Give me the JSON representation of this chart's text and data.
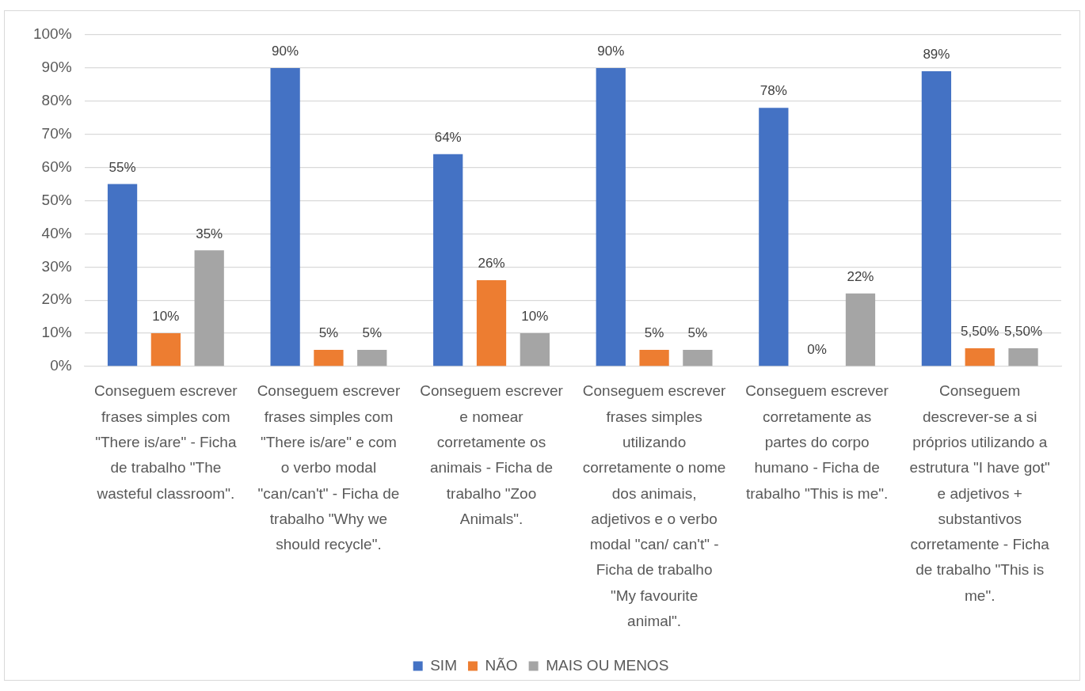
{
  "chart_data": {
    "type": "bar",
    "categories": [
      "Conseguem escrever frases simples com \"There is/are\" - Ficha de trabalho \"The wasteful classroom\".",
      "Conseguem escrever frases simples com \"There is/are\" e com o verbo modal \"can/can't\" - Ficha de trabalho \"Why we should recycle\".",
      "Conseguem escrever e nomear corretamente os animais - Ficha de trabalho \"Zoo Animals\".",
      "Conseguem escrever frases simples utilizando corretamente o nome dos animais, adjetivos e o verbo modal \"can/ can't\" - Ficha de trabalho \"My favourite animal\".",
      "Conseguem escrever corretamente as partes do corpo humano - Ficha de trabalho \"This is me\".",
      "Conseguem descrever-se a si próprios utilizando a estrutura \"I have got\" e adjetivos + substantivos corretamente - Ficha de trabalho \"This is me\"."
    ],
    "series": [
      {
        "name": "SIM",
        "color": "#4472c4",
        "values": [
          55,
          90,
          64,
          90,
          78,
          89
        ],
        "value_labels": [
          "55%",
          "90%",
          "64%",
          "90%",
          "78%",
          "89%"
        ]
      },
      {
        "name": "NÃO",
        "color": "#ed7d31",
        "values": [
          10,
          5,
          26,
          5,
          0,
          5.5
        ],
        "value_labels": [
          "10%",
          "5%",
          "26%",
          "5%",
          "0%",
          "5,50%"
        ]
      },
      {
        "name": "MAIS OU MENOS",
        "color": "#a5a5a5",
        "values": [
          35,
          5,
          10,
          5,
          22,
          5.5
        ],
        "value_labels": [
          "35%",
          "5%",
          "10%",
          "5%",
          "22%",
          "5,50%"
        ]
      }
    ],
    "ylim": [
      0,
      100
    ],
    "yticks": [
      {
        "value": 0,
        "label": "0%"
      },
      {
        "value": 10,
        "label": "10%"
      },
      {
        "value": 20,
        "label": "20%"
      },
      {
        "value": 30,
        "label": "30%"
      },
      {
        "value": 40,
        "label": "40%"
      },
      {
        "value": 50,
        "label": "50%"
      },
      {
        "value": 60,
        "label": "60%"
      },
      {
        "value": 70,
        "label": "70%"
      },
      {
        "value": 80,
        "label": "80%"
      },
      {
        "value": 90,
        "label": "90%"
      },
      {
        "value": 100,
        "label": "100%"
      }
    ],
    "grid": "y",
    "legend": "bottom"
  }
}
